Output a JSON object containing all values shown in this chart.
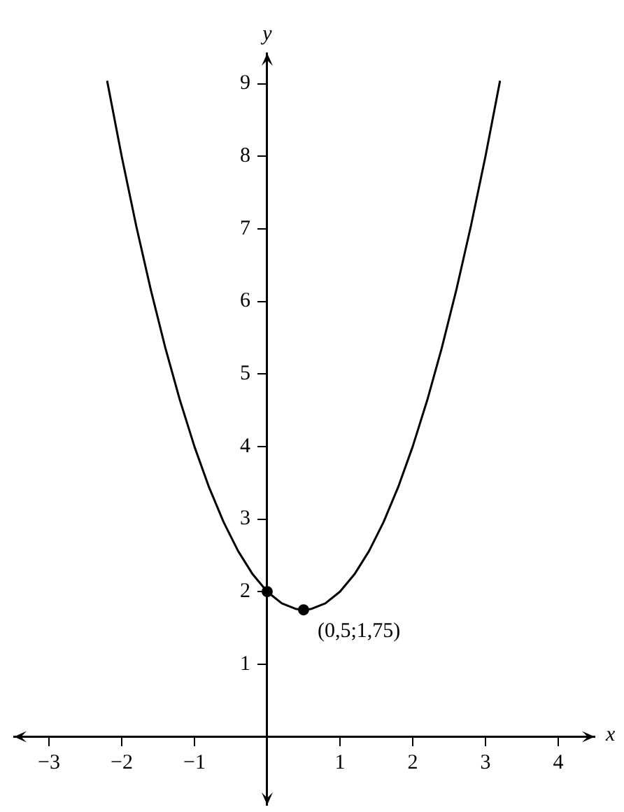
{
  "chart_data": {
    "type": "line",
    "xlabel": "x",
    "ylabel": "y",
    "xlim": [
      -3.48,
      4.5
    ],
    "ylim": [
      -0.94,
      9.42
    ],
    "xticks": [
      {
        "value": -3,
        "label": "−3"
      },
      {
        "value": -2,
        "label": "−2"
      },
      {
        "value": -1,
        "label": "−1"
      },
      1,
      2,
      3,
      4
    ],
    "yticks": [
      1,
      2,
      3,
      4,
      5,
      6,
      7,
      8,
      9
    ],
    "series": [
      {
        "color": "#000000",
        "marker": "none",
        "x": [
          -2.2,
          -2,
          -1.8,
          -1.6,
          -1.4,
          -1.2,
          -1,
          -0.8,
          -0.6,
          -0.4,
          -0.2,
          0,
          0.2,
          0.4,
          0.5,
          0.6,
          0.8,
          1,
          1.2,
          1.4,
          1.6,
          1.8,
          2,
          2.2,
          2.4,
          2.6,
          2.8,
          3,
          3.2
        ],
        "values": [
          9.04,
          8,
          7.04,
          6.16,
          5.36,
          4.64,
          4,
          3.44,
          2.96,
          2.56,
          2.24,
          2,
          1.84,
          1.76,
          1.75,
          1.76,
          1.84,
          2,
          2.24,
          2.56,
          2.96,
          3.44,
          4,
          4.64,
          5.36,
          6.16,
          7.04,
          8,
          9.04
        ]
      },
      {
        "type": "scatter",
        "color": "#000000",
        "marker": "circle",
        "x": [
          0,
          0.5
        ],
        "values": [
          2,
          1.75
        ]
      }
    ],
    "annotations": [
      {
        "text": "(0,5;1,75)",
        "x": 0.5,
        "y": 1.75
      }
    ],
    "grid": false,
    "legend": false
  }
}
